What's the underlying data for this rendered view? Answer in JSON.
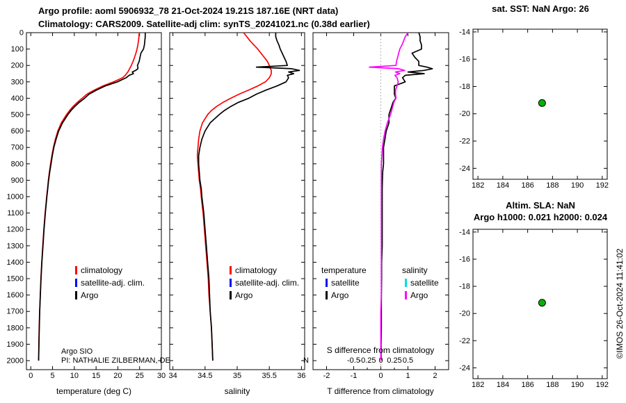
{
  "header": {
    "title_line1": "Argo profile: aoml 5906932_78 21-Oct-2024 19.21S 187.16E (NRT data)",
    "title_line2": "Climatology: CARS2009. Satellite-adj clim: synTS_20241021.nc (0.38d earlier)"
  },
  "annotations": {
    "institution": "Argo SIO",
    "pi": "PI: NATHALIE ZILBERMAN, DE",
    "pi_fragment": "N",
    "watermark": "©IMOS 26-Oct-2024 11:41:02"
  },
  "colors": {
    "climatology": "#ff0000",
    "satellite_adj_clim": "#0000ff",
    "argo": "#000000",
    "satellite_salinity": "#00dddd",
    "argo_salinity": "#ff00ff",
    "marker": "#00b300",
    "zero_line": "#999999"
  },
  "legends": {
    "profile": [
      {
        "label": "climatology",
        "color_key": "climatology"
      },
      {
        "label": "satellite-adj. clim.",
        "color_key": "satellite_adj_clim"
      },
      {
        "label": "Argo",
        "color_key": "argo"
      }
    ],
    "difference": {
      "temperature_header": "temperature",
      "salinity_header": "salinity",
      "items_temperature": [
        {
          "label": "satellite",
          "color_key": "satellite_adj_clim"
        },
        {
          "label": "Argo",
          "color_key": "argo"
        }
      ],
      "items_salinity": [
        {
          "label": "satellite",
          "color_key": "satellite_salinity"
        },
        {
          "label": "Argo",
          "color_key": "argo_salinity"
        }
      ]
    }
  },
  "chart_data": [
    {
      "id": "temperature-profile",
      "type": "line",
      "xlabel": "temperature (deg C)",
      "ylabel": "depth (m)",
      "xlim": [
        -1,
        30
      ],
      "xticks": [
        0,
        5,
        10,
        15,
        20,
        25,
        30
      ],
      "ylim": [
        0,
        2055
      ],
      "yticks": [
        0,
        100,
        200,
        300,
        400,
        500,
        600,
        700,
        800,
        900,
        1000,
        1100,
        1200,
        1300,
        1400,
        1500,
        1600,
        1700,
        1800,
        1900,
        2000
      ],
      "depth": [
        0,
        25,
        50,
        75,
        100,
        125,
        150,
        175,
        200,
        210,
        220,
        230,
        240,
        250,
        260,
        275,
        300,
        325,
        350,
        375,
        400,
        425,
        450,
        475,
        500,
        550,
        600,
        650,
        700,
        750,
        800,
        850,
        900,
        950,
        1000,
        1100,
        1200,
        1300,
        1400,
        1500,
        1600,
        1700,
        1800,
        1900,
        2000
      ],
      "series": [
        {
          "name": "climatology",
          "color": "#ff0000",
          "values": [
            24.9,
            24.85,
            24.75,
            24.6,
            24.4,
            24.15,
            23.85,
            23.5,
            23.1,
            22.9,
            22.7,
            22.5,
            22.3,
            22.0,
            21.7,
            21.1,
            19.0,
            16.6,
            14.6,
            12.9,
            11.8,
            10.7,
            9.7,
            8.9,
            8.2,
            7.0,
            6.2,
            5.65,
            5.2,
            4.85,
            4.55,
            4.28,
            4.04,
            3.85,
            3.65,
            3.3,
            3.0,
            2.75,
            2.52,
            2.32,
            2.18,
            2.03,
            1.93,
            1.86,
            1.79
          ]
        },
        {
          "name": "Argo",
          "color": "#000000",
          "values": [
            26.3,
            26.3,
            26.2,
            26.1,
            25.9,
            25.3,
            25.1,
            24.9,
            24.5,
            24.6,
            24.6,
            24.1,
            23.3,
            23.6,
            22.6,
            21.9,
            19.9,
            17.1,
            15.1,
            13.4,
            12.35,
            11.15,
            10.1,
            9.25,
            8.5,
            7.3,
            6.4,
            5.8,
            5.3,
            4.95,
            4.65,
            4.35,
            4.1,
            3.9,
            3.7,
            3.35,
            3.05,
            2.8,
            2.55,
            2.35,
            2.2,
            2.05,
            1.95,
            1.87,
            1.8
          ]
        }
      ]
    },
    {
      "id": "salinity-profile",
      "type": "line",
      "xlabel": "salinity",
      "ylabel": "depth (m)",
      "xlim": [
        33.95,
        36.05
      ],
      "xticks": [
        34,
        34.5,
        35,
        35.5,
        36
      ],
      "ylim": [
        0,
        2055
      ],
      "yticks": [
        0,
        100,
        200,
        300,
        400,
        500,
        600,
        700,
        800,
        900,
        1000,
        1100,
        1200,
        1300,
        1400,
        1500,
        1600,
        1700,
        1800,
        1900,
        2000
      ],
      "depth": [
        0,
        25,
        50,
        75,
        100,
        125,
        150,
        175,
        200,
        210,
        220,
        230,
        240,
        250,
        260,
        275,
        300,
        325,
        350,
        375,
        400,
        425,
        450,
        475,
        500,
        550,
        600,
        650,
        700,
        750,
        800,
        850,
        900,
        950,
        1000,
        1100,
        1200,
        1300,
        1400,
        1500,
        1600,
        1700,
        1800,
        1900,
        2000
      ],
      "series": [
        {
          "name": "climatology",
          "color": "#ff0000",
          "values": [
            35.1,
            35.15,
            35.2,
            35.26,
            35.32,
            35.37,
            35.42,
            35.47,
            35.5,
            35.51,
            35.52,
            35.53,
            35.53,
            35.53,
            35.52,
            35.5,
            35.44,
            35.32,
            35.18,
            35.03,
            34.9,
            34.78,
            34.68,
            34.6,
            34.54,
            34.46,
            34.42,
            34.4,
            34.39,
            34.38,
            34.39,
            34.4,
            34.41,
            34.43,
            34.44,
            34.47,
            34.49,
            34.51,
            34.53,
            34.55,
            34.56,
            34.58,
            34.6,
            34.61,
            34.62
          ]
        },
        {
          "name": "Argo",
          "color": "#000000",
          "values": [
            35.6,
            35.6,
            35.62,
            35.65,
            35.67,
            35.7,
            35.73,
            35.76,
            35.78,
            35.3,
            35.85,
            35.97,
            35.8,
            35.88,
            35.78,
            35.8,
            35.76,
            35.62,
            35.45,
            35.3,
            35.18,
            35.02,
            34.9,
            34.8,
            34.72,
            34.58,
            34.5,
            34.45,
            34.42,
            34.4,
            34.4,
            34.41,
            34.42,
            34.44,
            34.45,
            34.48,
            34.5,
            34.52,
            34.54,
            34.56,
            34.57,
            34.58,
            34.6,
            34.61,
            34.62
          ]
        }
      ]
    },
    {
      "id": "difference-profile",
      "type": "line",
      "xlabel": "T difference from climatology",
      "x2label": "S difference from climatology",
      "ylabel": "depth (m)",
      "xlim": [
        -2.5,
        2.5
      ],
      "xticks": [
        -2,
        -1,
        0,
        1,
        2
      ],
      "x2lim": [
        -1.25,
        1.25
      ],
      "x2ticks": [
        -0.5,
        -0.25,
        0,
        0.25,
        0.5
      ],
      "zero_line": true,
      "ylim": [
        0,
        2055
      ],
      "yticks": [
        0,
        100,
        200,
        300,
        400,
        500,
        600,
        700,
        800,
        900,
        1000,
        1100,
        1200,
        1300,
        1400,
        1500,
        1600,
        1700,
        1800,
        1900,
        2000
      ],
      "depth": [
        0,
        25,
        50,
        75,
        100,
        125,
        150,
        175,
        200,
        210,
        220,
        230,
        240,
        250,
        260,
        275,
        300,
        325,
        350,
        375,
        400,
        425,
        450,
        475,
        500,
        550,
        600,
        650,
        700,
        750,
        800,
        850,
        900,
        950,
        1000,
        1100,
        1200,
        1300,
        1400,
        1500,
        1600,
        1700,
        1800,
        1900,
        2000
      ],
      "series": [
        {
          "name": "T Argo minus climatology",
          "axis": "x1",
          "color": "#000000",
          "values": [
            1.4,
            1.45,
            1.45,
            1.5,
            1.5,
            1.15,
            1.25,
            1.4,
            1.4,
            1.7,
            1.9,
            1.6,
            1.0,
            1.6,
            0.9,
            0.8,
            0.9,
            0.5,
            0.5,
            0.5,
            0.55,
            0.45,
            0.4,
            0.35,
            0.3,
            0.3,
            0.2,
            0.15,
            0.1,
            0.1,
            0.1,
            0.07,
            0.06,
            0.05,
            0.05,
            0.05,
            0.05,
            0.05,
            0.03,
            0.03,
            0.02,
            0.02,
            0.02,
            0.01,
            0.01
          ]
        },
        {
          "name": "S Argo minus climatology",
          "axis": "x2",
          "color": "#ff00ff",
          "values": [
            0.5,
            0.45,
            0.42,
            0.39,
            0.35,
            0.33,
            0.31,
            0.29,
            0.28,
            -0.21,
            0.33,
            0.44,
            0.27,
            0.35,
            0.26,
            0.3,
            0.32,
            0.3,
            0.27,
            0.27,
            0.28,
            0.24,
            0.22,
            0.2,
            0.18,
            0.12,
            0.08,
            0.05,
            0.03,
            0.02,
            0.01,
            0.01,
            0.01,
            0.01,
            0.01,
            0.01,
            0.01,
            0.01,
            0.01,
            0.01,
            0.01,
            0.0,
            0.0,
            0.0,
            0.0
          ]
        }
      ]
    },
    {
      "id": "sst-map",
      "type": "scatter",
      "title": "sat. SST: NaN Argo: 26",
      "xlim": [
        181.6,
        192.4
      ],
      "xticks": [
        182,
        184,
        186,
        188,
        190,
        192
      ],
      "ylim": [
        -13.8,
        -24.8
      ],
      "yticks": [
        -14,
        -16,
        -18,
        -20,
        -22,
        -24
      ],
      "points": [
        {
          "lon": 187.16,
          "lat": -19.21,
          "color_key": "marker"
        }
      ]
    },
    {
      "id": "sla-map",
      "type": "scatter",
      "title_line1": "Altim. SLA: NaN",
      "title_line2": "Argo h1000: 0.021 h2000: 0.024",
      "xlim": [
        181.6,
        192.4
      ],
      "xticks": [
        182,
        184,
        186,
        188,
        190,
        192
      ],
      "ylim": [
        -13.8,
        -24.8
      ],
      "yticks": [
        -14,
        -16,
        -18,
        -20,
        -22,
        -24
      ],
      "points": [
        {
          "lon": 187.16,
          "lat": -19.21,
          "color_key": "marker"
        }
      ]
    }
  ]
}
